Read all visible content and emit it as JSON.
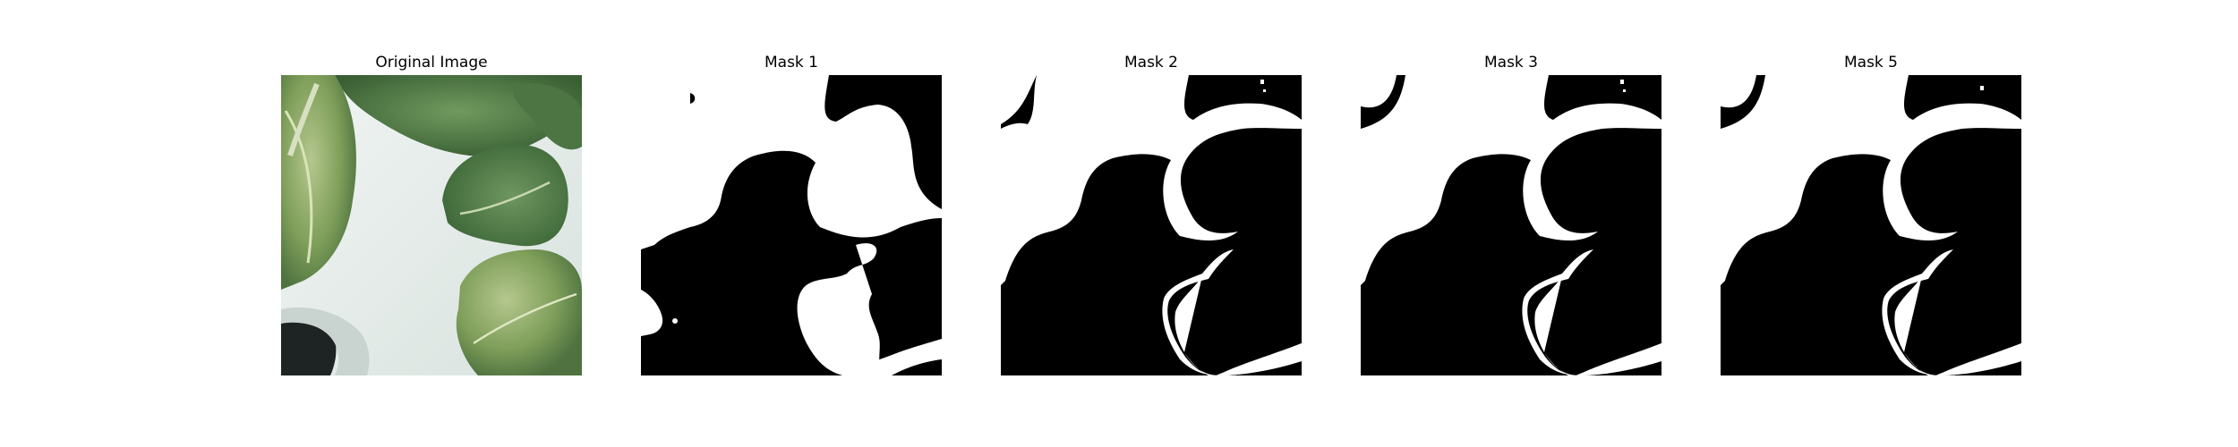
{
  "panels": [
    {
      "title": "Original Image",
      "kind": "photo"
    },
    {
      "title": "Mask 1",
      "kind": "mask-noisy"
    },
    {
      "title": "Mask 2",
      "kind": "mask"
    },
    {
      "title": "Mask 3",
      "kind": "mask"
    },
    {
      "title": "Mask 5",
      "kind": "mask"
    }
  ],
  "colors": {
    "background": "#ffffff",
    "mask_fg": "#ffffff",
    "mask_bg": "#000000",
    "leaf_dark": "#3f6b3a",
    "leaf_mid": "#5f8a4f",
    "leaf_light": "#9fb87a",
    "tray": "#e3ebe7"
  }
}
